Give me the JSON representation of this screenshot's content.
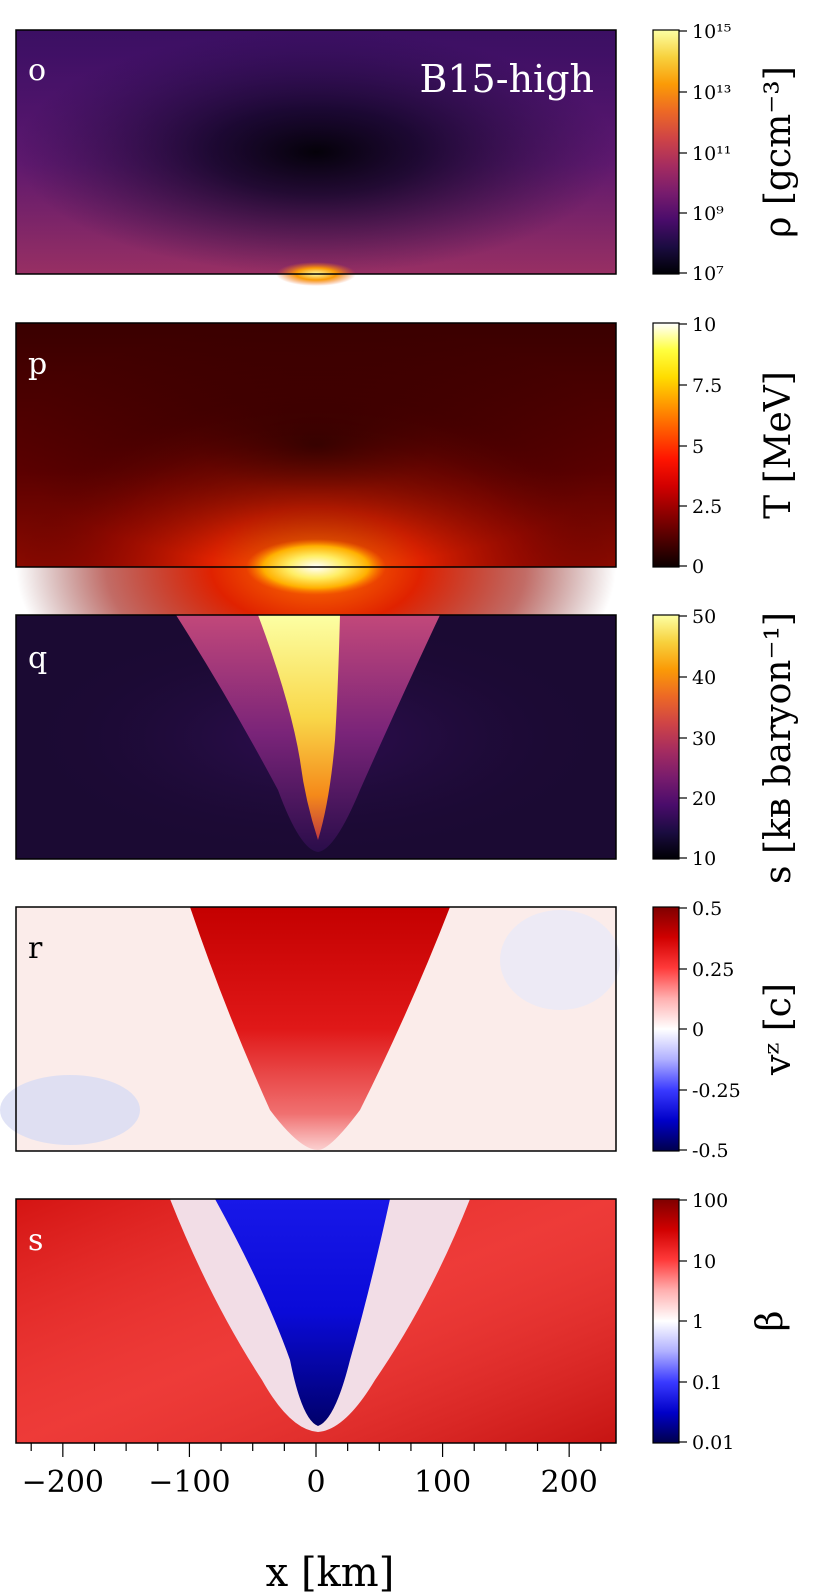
{
  "figure": {
    "model_label": "B15-high",
    "x_axis": {
      "label": "x [km]",
      "range": [
        -237,
        237
      ],
      "major_ticks": [
        -200,
        -100,
        0,
        100,
        200
      ],
      "tick_labels": [
        "−200",
        "−100",
        "0",
        "100",
        "200"
      ],
      "minor_step": 25
    },
    "panels": [
      {
        "letter": "o",
        "quantity": "ρ [gcm⁻³]",
        "colormap": "inferno",
        "letter_color": "#ffffff",
        "colorbar_scale": "log",
        "colorbar_ticks": [
          "10¹⁵",
          "10¹³",
          "10¹¹",
          "10⁹",
          "10⁷"
        ],
        "colors": [
          "#000004",
          "#1b0c41",
          "#4a0c6b",
          "#781c6d",
          "#a52c60",
          "#cf4446",
          "#ed6925",
          "#fb9b06",
          "#f7d13d",
          "#fcffa4"
        ]
      },
      {
        "letter": "p",
        "quantity": "T [MeV]",
        "colormap": "hot",
        "letter_color": "#ffffff",
        "colorbar_scale": "linear",
        "colorbar_ticks": [
          "10",
          "7.5",
          "5",
          "2.5",
          "0"
        ],
        "colors": [
          "#0b0000",
          "#4d0000",
          "#8f0000",
          "#d20000",
          "#ff1500",
          "#ff5700",
          "#ff9900",
          "#ffdc00",
          "#ffff3f",
          "#ffffff"
        ]
      },
      {
        "letter": "q",
        "quantity": "s [kʙ baryon⁻¹]",
        "colormap": "inferno",
        "letter_color": "#ffffff",
        "colorbar_scale": "linear",
        "colorbar_ticks": [
          "50",
          "40",
          "30",
          "20",
          "10"
        ],
        "colors": [
          "#000004",
          "#1b0c41",
          "#4a0c6b",
          "#781c6d",
          "#a52c60",
          "#cf4446",
          "#ed6925",
          "#fb9b06",
          "#f7d13d",
          "#fcffa4"
        ]
      },
      {
        "letter": "r",
        "quantity": "vᶻ [c]",
        "colormap": "seismic",
        "letter_color": "#000000",
        "colorbar_scale": "linear",
        "colorbar_ticks": [
          "0.5",
          "0.25",
          "0",
          "-0.25",
          "-0.5"
        ],
        "colors": [
          "#00004c",
          "#0000c8",
          "#3a3aff",
          "#b0b0ff",
          "#ffffff",
          "#ffb0b0",
          "#ff3a3a",
          "#d00000",
          "#7f0000"
        ]
      },
      {
        "letter": "s",
        "quantity": "β",
        "colormap": "seismic",
        "letter_color": "#ffffff",
        "colorbar_scale": "log",
        "colorbar_ticks": [
          "100",
          "10",
          "1",
          "0.1",
          "0.01"
        ],
        "colors": [
          "#00004c",
          "#0000c8",
          "#3a3aff",
          "#b0b0ff",
          "#ffffff",
          "#ffb0b0",
          "#ff3a3a",
          "#d00000",
          "#7f0000"
        ]
      }
    ]
  }
}
